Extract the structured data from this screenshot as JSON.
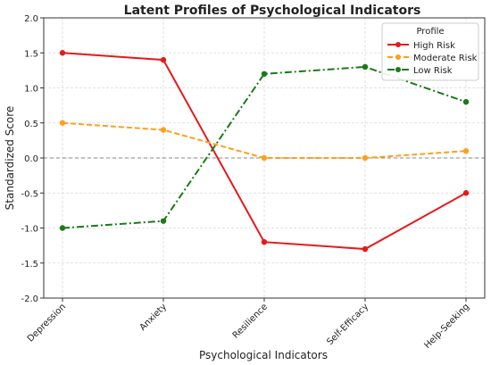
{
  "chart_data": {
    "type": "line",
    "title": "Latent Profiles of Psychological Indicators",
    "xlabel": "Psychological Indicators",
    "ylabel": "Standardized Score",
    "categories": [
      "Depression",
      "Anxiety",
      "Resilience",
      "Self-Efficacy",
      "Help-Seeking"
    ],
    "ylim": [
      -2.0,
      2.0
    ],
    "yticks": [
      "2.0",
      "1.5",
      "1.0",
      "0.5",
      "0.0",
      "-0.5",
      "-1.0",
      "-1.5",
      "-2.0"
    ],
    "ytick_values": [
      2.0,
      1.5,
      1.0,
      0.5,
      0.0,
      -0.5,
      -1.0,
      -1.5,
      -2.0
    ],
    "grid": true,
    "reference_line": 0.0,
    "legend": {
      "title": "Profile",
      "placement": "top-right"
    },
    "series": [
      {
        "name": "High Risk",
        "values": [
          1.5,
          1.4,
          -1.2,
          -1.3,
          -0.5
        ],
        "color": "#e41a1c",
        "style": "solid"
      },
      {
        "name": "Moderate Risk",
        "values": [
          0.5,
          0.4,
          0.0,
          0.0,
          0.1
        ],
        "color": "#ff9f1c",
        "style": "dashed"
      },
      {
        "name": "Low Risk",
        "values": [
          -1.0,
          -0.9,
          1.2,
          1.3,
          0.8
        ],
        "color": "#1a7a1a",
        "style": "dashdot"
      }
    ]
  }
}
